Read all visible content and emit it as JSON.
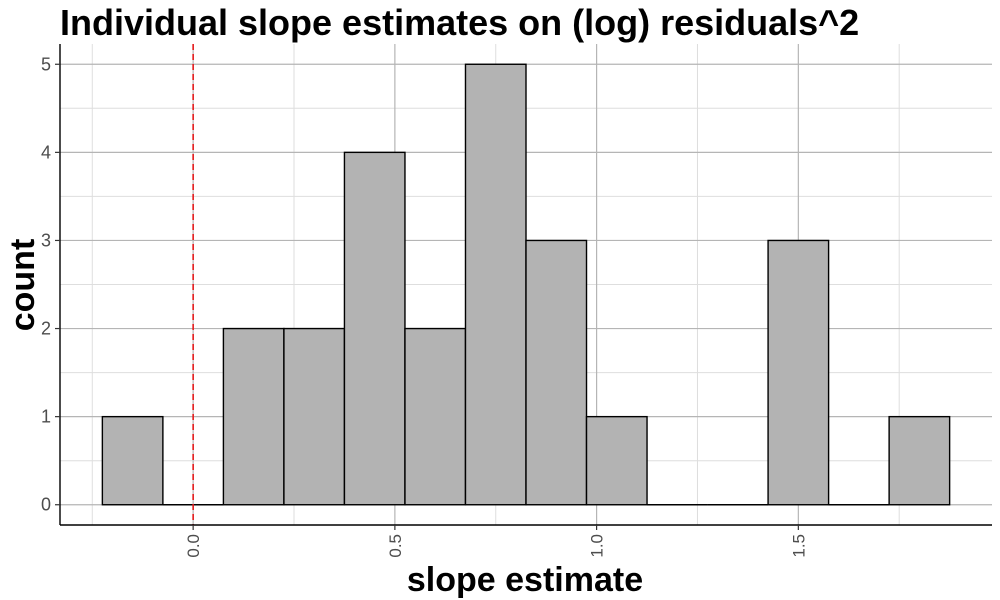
{
  "chart_data": {
    "type": "bar",
    "title": "Individual slope estimates on (log) residuals^2",
    "xlabel": "slope estimate",
    "ylabel": "count",
    "bins": [
      {
        "x0": -0.225,
        "x1": -0.075,
        "count": 1
      },
      {
        "x0": -0.075,
        "x1": 0.075,
        "count": 0
      },
      {
        "x0": 0.075,
        "x1": 0.225,
        "count": 2
      },
      {
        "x0": 0.225,
        "x1": 0.375,
        "count": 2
      },
      {
        "x0": 0.375,
        "x1": 0.525,
        "count": 4
      },
      {
        "x0": 0.525,
        "x1": 0.675,
        "count": 2
      },
      {
        "x0": 0.675,
        "x1": 0.825,
        "count": 5
      },
      {
        "x0": 0.825,
        "x1": 0.975,
        "count": 3
      },
      {
        "x0": 0.975,
        "x1": 1.125,
        "count": 1
      },
      {
        "x0": 1.125,
        "x1": 1.275,
        "count": 0
      },
      {
        "x0": 1.275,
        "x1": 1.425,
        "count": 0
      },
      {
        "x0": 1.425,
        "x1": 1.575,
        "count": 3
      },
      {
        "x0": 1.575,
        "x1": 1.725,
        "count": 0
      },
      {
        "x0": 1.725,
        "x1": 1.875,
        "count": 1
      }
    ],
    "x_ticks": [
      0.0,
      0.5,
      1.0,
      1.5
    ],
    "x_tick_labels": [
      "0.0",
      "0.5",
      "1.0",
      "1.5"
    ],
    "y_ticks": [
      0,
      1,
      2,
      3,
      4,
      5
    ],
    "y_tick_labels": [
      "0",
      "1",
      "2",
      "3",
      "4",
      "5"
    ],
    "xlim": [
      -0.33,
      1.98
    ],
    "ylim": [
      -0.23,
      5.23
    ],
    "reference_line": {
      "x": 0.0,
      "style": "dashed",
      "color": "#e41a1c"
    },
    "bar_fill": "#b3b3b3",
    "bar_stroke": "#000000",
    "grid": true,
    "legend": "none"
  }
}
